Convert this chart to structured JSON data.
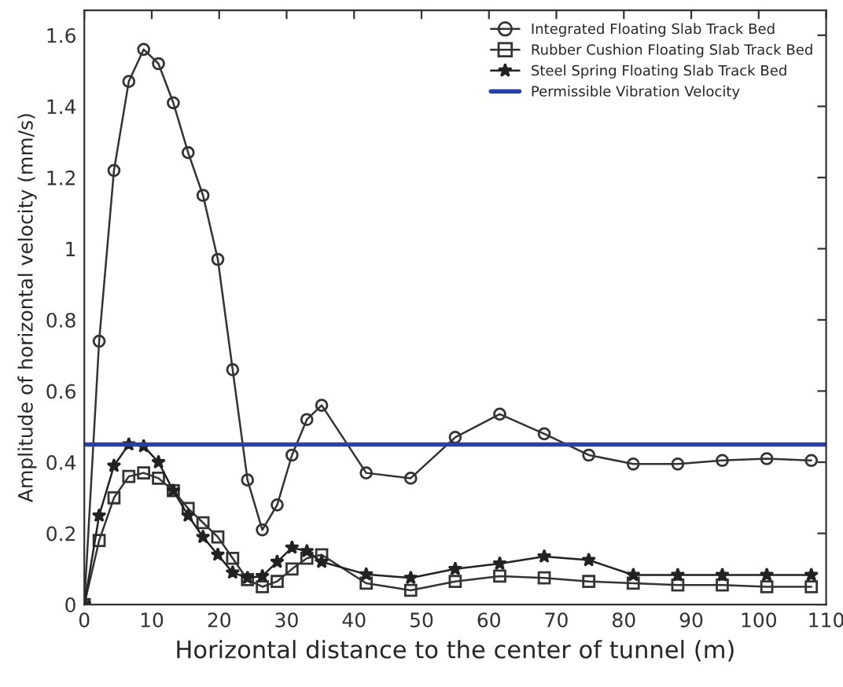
{
  "chart_data": {
    "type": "line",
    "xlabel": "Horizontal distance to the center of tunnel (m)",
    "ylabel": "Amplitude of horizontal velocity (mm/s)",
    "series": [
      {
        "name": "Integrated Floating Slab Track Bed",
        "color": "#333333",
        "marker": "circle",
        "x": [
          0,
          2.2,
          4.4,
          6.6,
          8.8,
          11,
          13.2,
          15.4,
          17.6,
          19.8,
          22,
          24.2,
          26.4,
          28.6,
          30.8,
          33,
          35.2,
          41.8,
          48.4,
          55,
          61.6,
          68.2,
          74.8,
          81.4,
          88,
          94.6,
          101.2,
          107.8
        ],
        "values": [
          0,
          0.74,
          1.22,
          1.47,
          1.56,
          1.52,
          1.41,
          1.27,
          1.15,
          0.97,
          0.66,
          0.35,
          0.21,
          0.28,
          0.42,
          0.52,
          0.56,
          0.37,
          0.355,
          0.47,
          0.535,
          0.48,
          0.42,
          0.395,
          0.395,
          0.405,
          0.41,
          0.405
        ]
      },
      {
        "name": "Rubber Cushion Floating Slab Track Bed",
        "color": "#333333",
        "marker": "square",
        "x": [
          0,
          2.2,
          4.4,
          6.6,
          8.8,
          11,
          13.2,
          15.4,
          17.6,
          19.8,
          22,
          24.2,
          26.4,
          28.6,
          30.8,
          33,
          35.2,
          41.8,
          48.4,
          55,
          61.6,
          68.2,
          74.8,
          81.4,
          88,
          94.6,
          101.2,
          107.8
        ],
        "values": [
          0,
          0.18,
          0.3,
          0.36,
          0.37,
          0.355,
          0.32,
          0.27,
          0.23,
          0.19,
          0.13,
          0.07,
          0.05,
          0.065,
          0.1,
          0.13,
          0.14,
          0.06,
          0.04,
          0.065,
          0.08,
          0.075,
          0.065,
          0.06,
          0.055,
          0.055,
          0.05,
          0.05
        ]
      },
      {
        "name": "Steel Spring Floating Slab Track Bed",
        "color": "#222222",
        "marker": "star",
        "x": [
          0,
          2.2,
          4.4,
          6.6,
          8.8,
          11,
          13.2,
          15.4,
          17.6,
          19.8,
          22,
          24.2,
          26.4,
          28.6,
          30.8,
          33,
          35.2,
          41.8,
          48.4,
          55,
          61.6,
          68.2,
          74.8,
          81.4,
          88,
          94.6,
          101.2,
          107.8
        ],
        "values": [
          0,
          0.25,
          0.39,
          0.45,
          0.445,
          0.4,
          0.32,
          0.25,
          0.19,
          0.14,
          0.09,
          0.075,
          0.08,
          0.12,
          0.16,
          0.15,
          0.12,
          0.085,
          0.075,
          0.1,
          0.115,
          0.135,
          0.125,
          0.083,
          0.083,
          0.083,
          0.083,
          0.083
        ]
      }
    ],
    "ref_lines": [
      {
        "axis": "y",
        "value": 0.45,
        "label": "Permissible Vibration Velocity",
        "color": "#2a3fa8"
      }
    ],
    "xlim": [
      0,
      110
    ],
    "xticks": [
      0,
      10,
      20,
      30,
      40,
      50,
      60,
      70,
      80,
      90,
      100,
      110
    ],
    "ylim": [
      0,
      1.67
    ],
    "yticks": [
      0,
      0.2,
      0.4,
      0.6,
      0.8,
      1,
      1.2,
      1.4,
      1.6
    ],
    "grid": false,
    "legend": "top right"
  }
}
